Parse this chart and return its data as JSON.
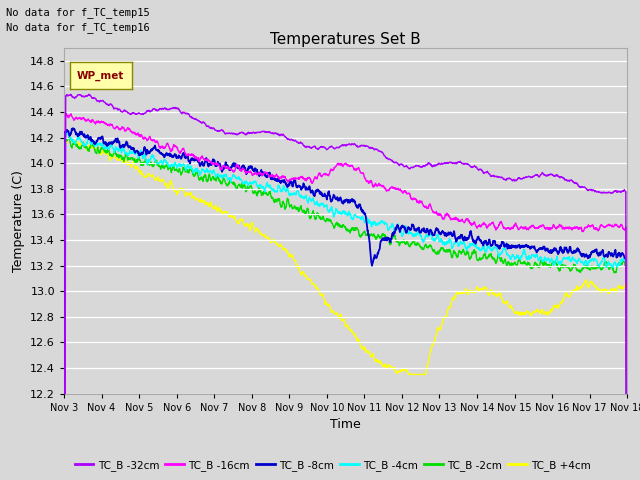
{
  "title": "Temperatures Set B",
  "xlabel": "Time",
  "ylabel": "Temperature (C)",
  "top_text": [
    "No data for f_TC_temp15",
    "No data for f_TC_temp16"
  ],
  "legend_label": "WP_met",
  "background_color": "#d8d8d8",
  "plot_bg_color": "#d8d8d8",
  "ylim": [
    12.2,
    14.9
  ],
  "yticks": [
    12.2,
    12.4,
    12.6,
    12.8,
    13.0,
    13.2,
    13.4,
    13.6,
    13.8,
    14.0,
    14.2,
    14.4,
    14.6,
    14.8
  ],
  "xtick_labels": [
    "Nov 3",
    "Nov 4",
    "Nov 5",
    "Nov 6",
    "Nov 7",
    "Nov 8",
    "Nov 9",
    "Nov 10",
    "Nov 11",
    "Nov 12",
    "Nov 13",
    "Nov 14",
    "Nov 15",
    "Nov 16",
    "Nov 17",
    "Nov 18"
  ],
  "series_colors": {
    "TC_B -32cm": "#aa00ff",
    "TC_B -16cm": "#ff00ff",
    "TC_B -8cm": "#0000cc",
    "TC_B -4cm": "#00ffff",
    "TC_B -2cm": "#00dd00",
    "TC_B +4cm": "#ffff00"
  },
  "legend_entries": [
    "TC_B -32cm",
    "TC_B -16cm",
    "TC_B -8cm",
    "TC_B -4cm",
    "TC_B -2cm",
    "TC_B +4cm"
  ],
  "legend_colors": [
    "#aa00ff",
    "#ff00ff",
    "#0000cc",
    "#00ffff",
    "#00dd00",
    "#ffff00"
  ]
}
